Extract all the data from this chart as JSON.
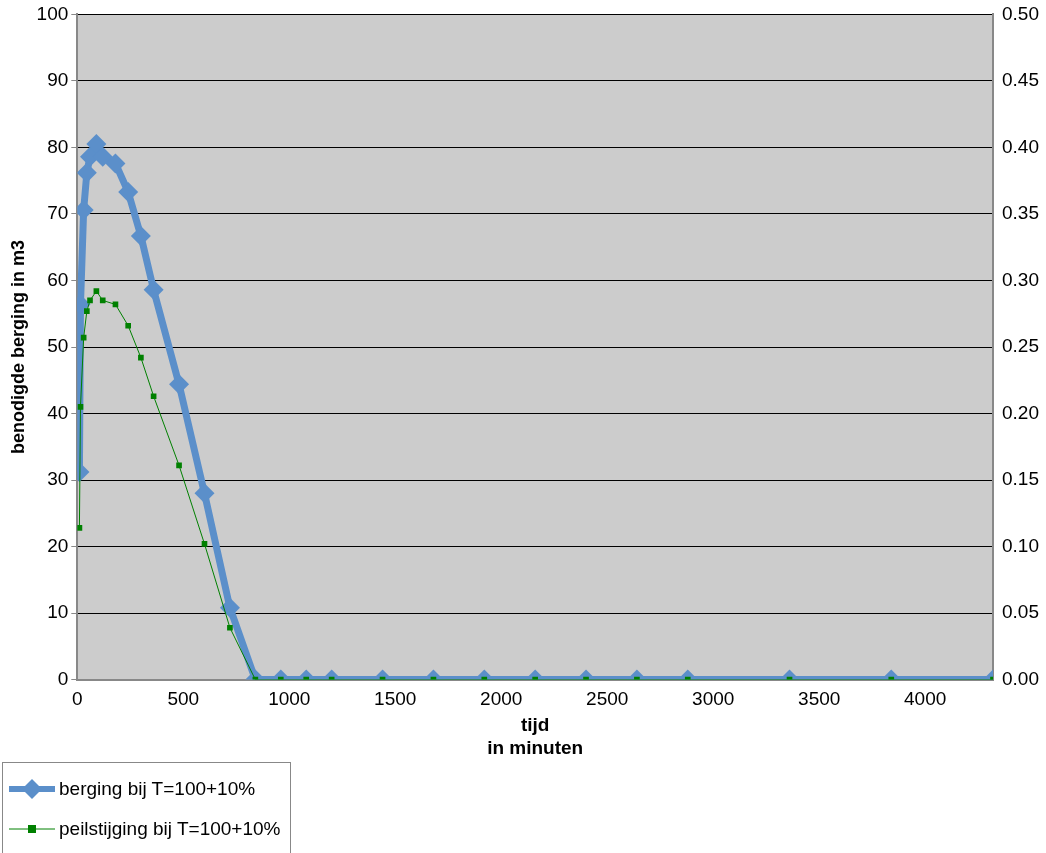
{
  "chart_data": {
    "type": "line",
    "xlabel": "tijd\nin minuten",
    "ylabel": "benodigde berging in m3",
    "x": [
      10,
      15,
      30,
      45,
      60,
      90,
      120,
      180,
      240,
      300,
      360,
      480,
      600,
      720,
      840,
      960,
      1080,
      1200,
      1440,
      1680,
      1920,
      2160,
      2400,
      2640,
      2880,
      3360,
      3840,
      4320
    ],
    "series": [
      {
        "name": "berging bij T=100+10%",
        "color": "#5b8fca",
        "marker": "diamond",
        "values": [
          31.2,
          56.4,
          70.6,
          76.2,
          78.6,
          80.5,
          78.6,
          77.6,
          73.3,
          66.7,
          58.6,
          44.4,
          28.0,
          10.8,
          0,
          0,
          0,
          0,
          0,
          0,
          0,
          0,
          0,
          0,
          0,
          0,
          0,
          0
        ]
      },
      {
        "name": "peilstijging bij T=100+10%",
        "color": "#008000",
        "marker": "square",
        "axis": "y2",
        "values": [
          0.114,
          0.205,
          0.257,
          0.277,
          0.285,
          0.292,
          0.285,
          0.282,
          0.266,
          0.242,
          0.213,
          0.161,
          0.102,
          0.039,
          0,
          0,
          0,
          0,
          0,
          0,
          0,
          0,
          0,
          0,
          0,
          0,
          0,
          0
        ]
      }
    ],
    "xlim": [
      0,
      4320
    ],
    "xticks": [
      0,
      500,
      1000,
      1500,
      2000,
      2500,
      3000,
      3500,
      4000
    ],
    "ylim": [
      0,
      100
    ],
    "yticks": [
      0,
      10,
      20,
      30,
      40,
      50,
      60,
      70,
      80,
      90,
      100
    ],
    "y2lim": [
      0,
      0.5
    ],
    "y2ticks": [
      {
        "value": 0,
        "label": "0.00"
      },
      {
        "value": 0.05,
        "label": "0.05"
      },
      {
        "value": 0.1,
        "label": "0.10"
      },
      {
        "value": 0.15,
        "label": "0.15"
      },
      {
        "value": 0.2,
        "label": "0.20"
      },
      {
        "value": 0.25,
        "label": "0.25"
      },
      {
        "value": 0.3,
        "label": "0.30"
      },
      {
        "value": 0.35,
        "label": "0.35"
      },
      {
        "value": 0.4,
        "label": "0.40"
      },
      {
        "value": 0.45,
        "label": "0.45"
      },
      {
        "value": 0.5,
        "label": "0.50"
      }
    ],
    "grid": "y",
    "legend": "bottom left",
    "line_style": "solid"
  }
}
